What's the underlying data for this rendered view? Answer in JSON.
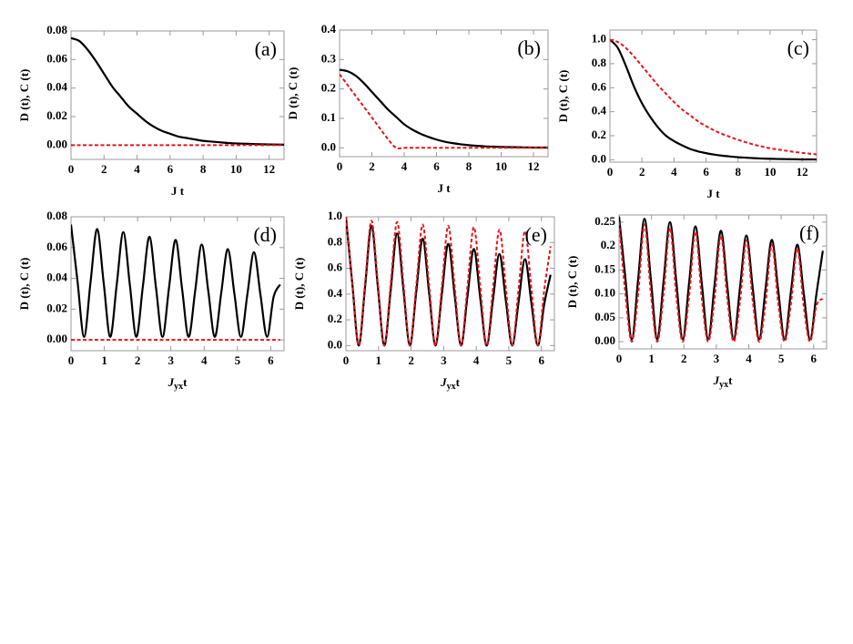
{
  "chart_data": [
    {
      "type": "line",
      "label": "(a)",
      "x_label": "J t",
      "y_label": "D (t), C (t)",
      "x": [
        0,
        0.5,
        1,
        1.5,
        2,
        2.5,
        3,
        3.5,
        4,
        4.5,
        5,
        5.5,
        6,
        6.5,
        7,
        7.5,
        8,
        8.5,
        9,
        9.5,
        10,
        10.5,
        11,
        11.5,
        12,
        12.5,
        12.9
      ],
      "xlim": [
        0,
        12.9
      ],
      "xticks": [
        0,
        2,
        4,
        6,
        8,
        10,
        12
      ],
      "ylim": [
        -0.01,
        0.08
      ],
      "yticks": [
        {
          "value": 0,
          "label": "0.00"
        },
        0.02,
        0.04,
        0.06,
        0.08
      ],
      "series": [
        {
          "color": "#000000",
          "style": "solid",
          "values": [
            0.075,
            0.073,
            0.067,
            0.059,
            0.05,
            0.041,
            0.034,
            0.027,
            0.022,
            0.017,
            0.013,
            0.01,
            0.008,
            0.006,
            0.005,
            0.004,
            0.003,
            0.0025,
            0.002,
            0.0015,
            0.0012,
            0.001,
            0.0008,
            0.0006,
            0.0005,
            0.0004,
            0.0003
          ]
        },
        {
          "color": "#e8141b",
          "style": "dashed",
          "values": [
            0,
            0,
            0,
            0,
            0,
            0,
            0,
            0,
            0,
            0,
            0,
            0,
            0,
            0,
            0,
            0,
            0,
            0,
            0,
            0,
            0,
            0,
            0,
            0,
            0,
            0,
            0
          ]
        }
      ]
    },
    {
      "type": "line",
      "label": "(b)",
      "x_label": "J t",
      "y_label": "D (t), C (t)",
      "x": [
        0,
        0.5,
        1,
        1.5,
        2,
        2.5,
        3,
        3.5,
        4,
        4.5,
        5,
        5.5,
        6,
        6.5,
        7,
        7.5,
        8,
        8.5,
        9,
        9.5,
        10,
        10.5,
        11,
        11.5,
        12,
        12.5,
        12.9
      ],
      "xlim": [
        0,
        12.9
      ],
      "xticks": [
        0,
        2,
        4,
        6,
        8,
        10,
        12
      ],
      "ylim": [
        -0.03,
        0.4
      ],
      "yticks": [
        {
          "value": 0,
          "label": "0.0"
        },
        0.1,
        0.2,
        0.3,
        0.4
      ],
      "series": [
        {
          "color": "#000000",
          "style": "solid",
          "values": [
            0.265,
            0.26,
            0.245,
            0.22,
            0.19,
            0.16,
            0.13,
            0.105,
            0.08,
            0.062,
            0.048,
            0.037,
            0.028,
            0.021,
            0.016,
            0.012,
            0.009,
            0.007,
            0.005,
            0.004,
            0.003,
            0.0025,
            0.002,
            0.0015,
            0.001,
            0.001,
            0.001
          ]
        },
        {
          "color": "#e8141b",
          "style": "dashed",
          "values": [
            0.25,
            0.213,
            0.176,
            0.14,
            0.103,
            0.066,
            0.029,
            0,
            0,
            0,
            0,
            0,
            0,
            0,
            0,
            0,
            0,
            0,
            0,
            0,
            0,
            0,
            0,
            0,
            0,
            0,
            0
          ]
        }
      ]
    },
    {
      "type": "line",
      "label": "(c)",
      "x_label": "J t",
      "y_label": "D (t), C (t)",
      "x": [
        0,
        0.5,
        1,
        1.5,
        2,
        2.5,
        3,
        3.5,
        4,
        4.5,
        5,
        5.5,
        6,
        6.5,
        7,
        7.5,
        8,
        8.5,
        9,
        9.5,
        10,
        10.5,
        11,
        11.5,
        12,
        12.5,
        12.9
      ],
      "xlim": [
        0,
        12.9
      ],
      "xticks": [
        0,
        2,
        4,
        6,
        8,
        10,
        12
      ],
      "ylim": [
        -0.02,
        1.08
      ],
      "yticks": [
        {
          "value": 0,
          "label": "0.0"
        },
        0.2,
        0.4,
        0.6,
        0.8,
        {
          "value": 1,
          "label": "1.0"
        }
      ],
      "series": [
        {
          "color": "#000000",
          "style": "solid",
          "values": [
            1.0,
            0.93,
            0.78,
            0.61,
            0.47,
            0.36,
            0.27,
            0.2,
            0.155,
            0.12,
            0.09,
            0.07,
            0.055,
            0.043,
            0.034,
            0.027,
            0.021,
            0.017,
            0.013,
            0.01,
            0.008,
            0.006,
            0.005,
            0.004,
            0.003,
            0.003,
            0.002
          ]
        },
        {
          "color": "#e8141b",
          "style": "dashed",
          "values": [
            1.0,
            0.98,
            0.93,
            0.86,
            0.78,
            0.7,
            0.62,
            0.55,
            0.48,
            0.42,
            0.37,
            0.32,
            0.28,
            0.245,
            0.215,
            0.19,
            0.165,
            0.145,
            0.125,
            0.11,
            0.095,
            0.085,
            0.075,
            0.065,
            0.057,
            0.05,
            0.045
          ]
        }
      ]
    },
    {
      "type": "line",
      "label": "(d)",
      "x_label": {
        "main": "J",
        "sub": "yx",
        "tail": "t"
      },
      "y_label": "D (t), C (t)",
      "x": [
        0,
        0.196,
        0.393,
        0.589,
        0.785,
        0.982,
        1.178,
        1.374,
        1.571,
        1.767,
        1.963,
        2.16,
        2.356,
        2.553,
        2.749,
        2.945,
        3.142,
        3.338,
        3.534,
        3.731,
        3.927,
        4.123,
        4.32,
        4.516,
        4.712,
        4.909,
        5.105,
        5.301,
        5.498,
        5.694,
        5.89,
        6.087,
        6.283
      ],
      "xlim": [
        0,
        6.4
      ],
      "xticks": [
        0,
        1,
        2,
        3,
        4,
        5,
        6
      ],
      "ylim": [
        -0.007,
        0.08
      ],
      "yticks": [
        {
          "value": 0,
          "label": "0.00"
        },
        0.02,
        0.04,
        0.06,
        0.08
      ],
      "series": [
        {
          "color": "#000000",
          "style": "solid",
          "values": [
            0.075,
            0.038,
            0.002,
            0.038,
            0.072,
            0.037,
            0.002,
            0.036,
            0.07,
            0.036,
            0.002,
            0.035,
            0.067,
            0.034,
            0.002,
            0.034,
            0.065,
            0.033,
            0.002,
            0.032,
            0.062,
            0.032,
            0.002,
            0.031,
            0.059,
            0.03,
            0.002,
            0.03,
            0.057,
            0.029,
            0.002,
            0.028,
            0.036
          ]
        },
        {
          "color": "#e8141b",
          "style": "dashed",
          "values": [
            0,
            0,
            0,
            0,
            0,
            0,
            0,
            0,
            0,
            0,
            0,
            0,
            0,
            0,
            0,
            0,
            0,
            0,
            0,
            0,
            0,
            0,
            0,
            0,
            0,
            0,
            0,
            0,
            0,
            0,
            0,
            0,
            0
          ]
        }
      ]
    },
    {
      "type": "line",
      "label": "(e)",
      "x_label": {
        "main": "J",
        "sub": "yx",
        "tail": "t"
      },
      "y_label": "D (t), C (t)",
      "x": [
        0,
        0.196,
        0.393,
        0.589,
        0.785,
        0.982,
        1.178,
        1.374,
        1.571,
        1.767,
        1.963,
        2.16,
        2.356,
        2.553,
        2.749,
        2.945,
        3.142,
        3.338,
        3.534,
        3.731,
        3.927,
        4.123,
        4.32,
        4.516,
        4.712,
        4.909,
        5.105,
        5.301,
        5.498,
        5.694,
        5.89,
        6.087,
        6.283
      ],
      "xlim": [
        0,
        6.4
      ],
      "xticks": [
        0,
        1,
        2,
        3,
        4,
        5,
        6
      ],
      "ylim": [
        -0.04,
        1.0
      ],
      "yticks": [
        {
          "value": 0,
          "label": "0.0"
        },
        0.2,
        0.4,
        0.6,
        0.8,
        {
          "value": 1,
          "label": "1.0"
        }
      ],
      "series": [
        {
          "color": "#000000",
          "style": "solid",
          "values": [
            1.0,
            0.48,
            0,
            0.46,
            0.93,
            0.45,
            0,
            0.43,
            0.87,
            0.43,
            0,
            0.42,
            0.83,
            0.41,
            0,
            0.4,
            0.79,
            0.39,
            0,
            0.38,
            0.75,
            0.37,
            0,
            0.36,
            0.71,
            0.35,
            0,
            0.34,
            0.67,
            0.33,
            0,
            0.32,
            0.55
          ]
        },
        {
          "color": "#e8141b",
          "style": "dashed",
          "values": [
            1.0,
            0.49,
            0,
            0.49,
            0.97,
            0.48,
            0,
            0.48,
            0.96,
            0.48,
            0,
            0.47,
            0.94,
            0.47,
            0,
            0.46,
            0.93,
            0.46,
            0,
            0.46,
            0.92,
            0.46,
            0,
            0.45,
            0.9,
            0.45,
            0,
            0.44,
            0.89,
            0.44,
            0,
            0.43,
            0.77
          ]
        }
      ]
    },
    {
      "type": "line",
      "label": "(f)",
      "x_label": {
        "main": "J",
        "sub": "yx",
        "tail": "t"
      },
      "y_label": "D (t), C (t)",
      "x": [
        0,
        0.196,
        0.393,
        0.589,
        0.785,
        0.982,
        1.178,
        1.374,
        1.571,
        1.767,
        1.963,
        2.16,
        2.356,
        2.553,
        2.749,
        2.945,
        3.142,
        3.338,
        3.534,
        3.731,
        3.927,
        4.123,
        4.32,
        4.516,
        4.712,
        4.909,
        5.105,
        5.301,
        5.498,
        5.694,
        5.89,
        6.087,
        6.283
      ],
      "xlim": [
        0,
        6.4
      ],
      "xticks": [
        0,
        1,
        2,
        3,
        4,
        5,
        6
      ],
      "ylim": [
        -0.015,
        0.265
      ],
      "yticks": [
        {
          "value": 0,
          "label": "0.00"
        },
        0.05,
        {
          "value": 0.1,
          "label": "0.10"
        },
        0.15,
        0.2,
        0.25
      ],
      "series": [
        {
          "color": "#000000",
          "style": "solid",
          "values": [
            0.262,
            0.133,
            0.005,
            0.131,
            0.257,
            0.13,
            0.005,
            0.127,
            0.25,
            0.125,
            0.005,
            0.123,
            0.241,
            0.121,
            0.005,
            0.119,
            0.232,
            0.116,
            0.005,
            0.114,
            0.222,
            0.112,
            0.005,
            0.11,
            0.213,
            0.107,
            0.005,
            0.105,
            0.203,
            0.102,
            0.005,
            0.1,
            0.19
          ]
        },
        {
          "color": "#e8141b",
          "style": "dashed",
          "values": [
            0.25,
            0.1,
            0,
            0.1,
            0.245,
            0.1,
            0,
            0.1,
            0.238,
            0.095,
            0,
            0.095,
            0.23,
            0.09,
            0,
            0.09,
            0.222,
            0.09,
            0,
            0.085,
            0.212,
            0.085,
            0,
            0.08,
            0.203,
            0.08,
            0,
            0.08,
            0.195,
            0.075,
            0,
            0.075,
            0.09
          ]
        }
      ]
    }
  ]
}
